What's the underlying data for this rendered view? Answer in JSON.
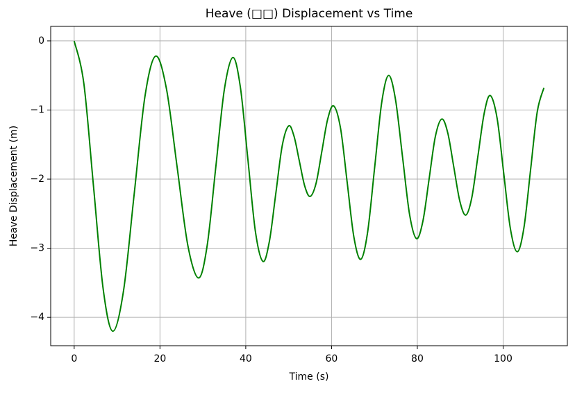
{
  "chart_data": {
    "type": "line",
    "title": "Heave (□□) Displacement vs Time",
    "x_label": "Time (s)",
    "y_label": "Heave Displacement (m)",
    "x": [
      0,
      2.25,
      4.5,
      6.75,
      9,
      11.5,
      14,
      16.5,
      19,
      21.5,
      24,
      26.5,
      29,
      31,
      33,
      35,
      37,
      38.75,
      40.5,
      42.25,
      44,
      45.5,
      47,
      48.5,
      50,
      51.25,
      52.5,
      53.75,
      55,
      56.4,
      57.75,
      59.1,
      60.5,
      62.1,
      63.65,
      65.2,
      66.8,
      68.4,
      70.05,
      71.7,
      73.3,
      74.9,
      76.55,
      78.2,
      79.8,
      81.3,
      82.75,
      84.2,
      85.7,
      87.1,
      88.5,
      89.9,
      91.3,
      92.7,
      94.15,
      95.6,
      97,
      98.6,
      100.15,
      101.7,
      103.3,
      104.85,
      106.4,
      107.95,
      109.5
    ],
    "series": [
      {
        "color": "#008000",
        "values": [
          0,
          -0.615,
          -2.1,
          -3.585,
          -4.2,
          -3.617,
          -2.21,
          -0.803,
          -0.22,
          -0.69,
          -1.825,
          -2.96,
          -3.43,
          -2.963,
          -1.835,
          -0.707,
          -0.24,
          -0.672,
          -1.715,
          -2.758,
          -3.19,
          -2.903,
          -2.21,
          -1.517,
          -1.23,
          -1.379,
          -1.74,
          -2.101,
          -2.25,
          -2.058,
          -1.595,
          -1.132,
          -0.94,
          -1.265,
          -2.05,
          -2.835,
          -3.16,
          -2.771,
          -1.83,
          -0.889,
          -0.5,
          -0.845,
          -1.68,
          -2.515,
          -2.86,
          -2.607,
          -1.995,
          -1.383,
          -1.13,
          -1.333,
          -1.825,
          -2.317,
          -2.52,
          -2.267,
          -1.655,
          -1.043,
          -0.79,
          -1.121,
          -1.92,
          -2.719,
          -3.05,
          -2.703,
          -1.865,
          -1.027,
          -0.68
        ]
      }
    ],
    "xlim": [
      -5.475,
      114.975
    ],
    "ylim": [
      -4.41,
      0.21
    ],
    "xticks": [
      0,
      20,
      40,
      60,
      80,
      100
    ],
    "yticks": [
      {
        "value": -4,
        "label": "−4"
      },
      {
        "value": -3,
        "label": "−3"
      },
      {
        "value": -2,
        "label": "−2"
      },
      {
        "value": -1,
        "label": "−1"
      },
      0
    ],
    "grid": true
  }
}
